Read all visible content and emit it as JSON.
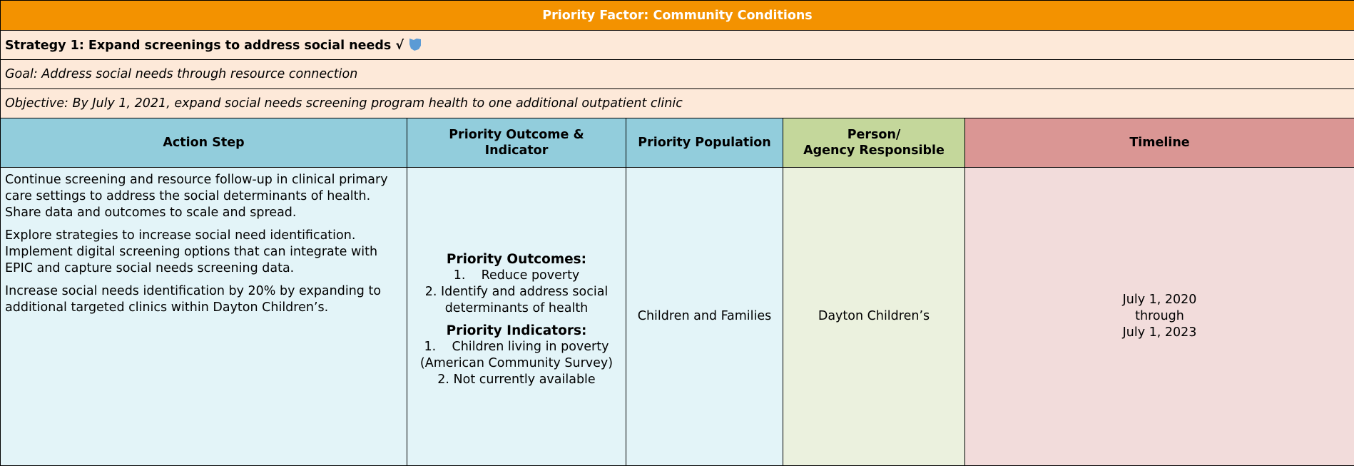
{
  "header": {
    "title": "Priority Factor: Community Conditions"
  },
  "strategy": "Strategy 1: Expand screenings to address social needs √",
  "goal": "Goal: Address social needs through resource connection",
  "objective": "Objective: By July 1, 2021, expand social needs screening program health to one additional outpatient clinic",
  "table": {
    "columns": [
      [
        "Action Step"
      ],
      [
        "Priority Outcome &",
        "Indicator"
      ],
      [
        "Priority Population"
      ],
      [
        "Person/",
        "Agency Responsible"
      ],
      [
        "Timeline"
      ]
    ],
    "rows": [
      {
        "action_step": [
          "Continue screening and resource follow-up in clinical primary care settings to address the social determinants of health. Share data and outcomes to scale and spread.",
          "Explore strategies to increase social need identification. Implement digital screening options that can integrate with EPIC and capture social needs screening data.",
          "Increase social needs identification by 20% by expanding to additional targeted clinics within Dayton Children’s."
        ],
        "outcomes_heading": "Priority Outcomes:",
        "outcomes": [
          "1.    Reduce poverty",
          "2. Identify and address social determinants of health"
        ],
        "indicators_heading": "Priority Indicators:",
        "indicators": [
          "1.    Children living in poverty (American Community Survey)",
          "2. Not currently available"
        ],
        "population": "Children and Families",
        "responsible": "Dayton Children’s",
        "timeline": [
          "July 1, 2020",
          "through",
          "July 1, 2023"
        ]
      }
    ]
  }
}
